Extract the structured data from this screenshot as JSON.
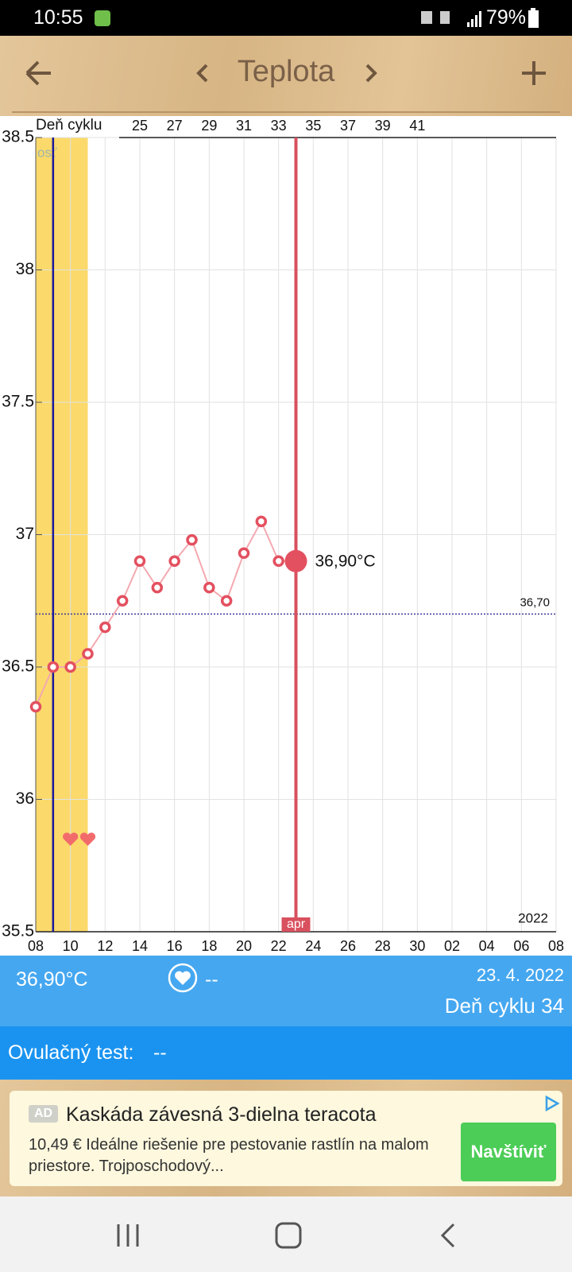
{
  "status_bar": {
    "time": "10:55",
    "battery": "79%"
  },
  "header": {
    "title": "Teplota"
  },
  "chart_data": {
    "type": "line",
    "x_axis_label": "Deň cyklu",
    "x": [
      "2022-04-08",
      "2022-04-09",
      "2022-04-10",
      "2022-04-11",
      "2022-04-12",
      "2022-04-13",
      "2022-04-14",
      "2022-04-15",
      "2022-04-16",
      "2022-04-17",
      "2022-04-18",
      "2022-04-19",
      "2022-04-20",
      "2022-04-21",
      "2022-04-22",
      "2022-04-23"
    ],
    "values": [
      36.35,
      36.5,
      36.5,
      36.55,
      36.65,
      36.75,
      36.9,
      36.8,
      36.9,
      36.98,
      36.8,
      36.75,
      36.93,
      37.05,
      36.9,
      36.9
    ],
    "color": "#e3505f",
    "line_color": "#f4a9b0",
    "xlim": [
      "2022-04-08",
      "2022-05-08"
    ],
    "xticks": [
      {
        "value": "2022-04-08",
        "label": "08"
      },
      {
        "value": "2022-04-10",
        "label": "10"
      },
      {
        "value": "2022-04-12",
        "label": "12"
      },
      {
        "value": "2022-04-14",
        "label": "14"
      },
      {
        "value": "2022-04-16",
        "label": "16"
      },
      {
        "value": "2022-04-18",
        "label": "18"
      },
      {
        "value": "2022-04-20",
        "label": "20"
      },
      {
        "value": "2022-04-22",
        "label": "22"
      },
      {
        "value": "2022-04-24",
        "label": "24"
      },
      {
        "value": "2022-04-26",
        "label": "26"
      },
      {
        "value": "2022-04-28",
        "label": "28"
      },
      {
        "value": "2022-04-30",
        "label": "30"
      },
      {
        "value": "2022-05-02",
        "label": "02"
      },
      {
        "value": "2022-05-04",
        "label": "04"
      },
      {
        "value": "2022-05-06",
        "label": "06"
      },
      {
        "value": "2022-05-08",
        "label": "08"
      }
    ],
    "x2lim": [
      19,
      49
    ],
    "x2ticks": [
      25,
      27,
      29,
      31,
      33,
      35,
      37,
      39,
      41
    ],
    "ylim": [
      35.5,
      38.5
    ],
    "yticks": [
      35.5,
      36,
      36.5,
      37,
      37.5,
      38,
      38.5
    ],
    "grid": true,
    "coverline": {
      "value": 36.7,
      "label": "36,70",
      "color": "#3a3a9a"
    },
    "fertile_window": {
      "start": "2022-04-08",
      "end": "2022-04-11",
      "label": "osť",
      "color": "#fbd96b"
    },
    "ovulation_date": "2022-04-09",
    "intercourse_dates": [
      "2022-04-10",
      "2022-04-11"
    ],
    "selected": {
      "date": "2022-04-23",
      "label": "36,90°C",
      "month_label": "apr"
    },
    "year_label": "2022"
  },
  "info": {
    "temperature": "36,90°C",
    "intercourse": "--",
    "date": "23. 4. 2022",
    "cycle_day": "Deň cyklu 34"
  },
  "ovulation_test": {
    "label": "Ovulačný test:",
    "value": "--"
  },
  "ad": {
    "badge": "AD",
    "title": "Kaskáda závesná 3-dielna teracota",
    "text": "10,49 € Ideálne riešenie pre pestovanie rastlín na malom priestore. Trojposchodový...",
    "button": "Navštíviť"
  }
}
